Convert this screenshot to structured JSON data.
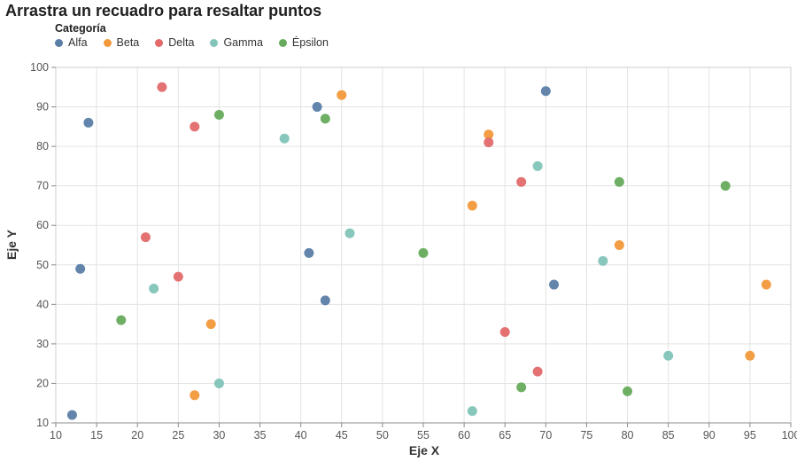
{
  "title": "Arrastra un recuadro para resaltar puntos",
  "chart_data": {
    "type": "scatter",
    "xlabel": "Eje X",
    "ylabel": "Eje Y",
    "xlim": [
      10,
      100
    ],
    "ylim": [
      10,
      100
    ],
    "x_ticks": [
      10,
      15,
      20,
      25,
      30,
      35,
      40,
      45,
      50,
      55,
      60,
      65,
      70,
      75,
      80,
      85,
      90,
      95,
      100
    ],
    "y_ticks": [
      10,
      20,
      30,
      40,
      50,
      60,
      70,
      80,
      90,
      100
    ],
    "grid": true,
    "legend": {
      "title": "Categoría",
      "placement": "top-left"
    },
    "series": [
      {
        "name": "Alfa",
        "color": "#5b7ea8",
        "points": [
          [
            14,
            86
          ],
          [
            13,
            49
          ],
          [
            12,
            12
          ],
          [
            42,
            90
          ],
          [
            41,
            53
          ],
          [
            43,
            41
          ],
          [
            70,
            94
          ],
          [
            71,
            45
          ]
        ]
      },
      {
        "name": "Beta",
        "color": "#f2993a",
        "points": [
          [
            45,
            93
          ],
          [
            29,
            35
          ],
          [
            27,
            17
          ],
          [
            63,
            83
          ],
          [
            61,
            65
          ],
          [
            79,
            55
          ],
          [
            97,
            45
          ],
          [
            95,
            27
          ]
        ]
      },
      {
        "name": "Delta",
        "color": "#e36a6a",
        "points": [
          [
            23,
            95
          ],
          [
            27,
            85
          ],
          [
            21,
            57
          ],
          [
            25,
            47
          ],
          [
            63,
            81
          ],
          [
            67,
            71
          ],
          [
            65,
            33
          ],
          [
            69,
            23
          ]
        ]
      },
      {
        "name": "Gamma",
        "color": "#82c4b8",
        "points": [
          [
            38,
            82
          ],
          [
            46,
            58
          ],
          [
            22,
            44
          ],
          [
            30,
            20
          ],
          [
            69,
            75
          ],
          [
            77,
            51
          ],
          [
            85,
            27
          ],
          [
            61,
            13
          ]
        ]
      },
      {
        "name": "Épsilon",
        "color": "#66ab5c",
        "points": [
          [
            30,
            88
          ],
          [
            43,
            87
          ],
          [
            18,
            36
          ],
          [
            55,
            53
          ],
          [
            79,
            71
          ],
          [
            92,
            70
          ],
          [
            67,
            19
          ],
          [
            80,
            18
          ]
        ]
      }
    ]
  }
}
